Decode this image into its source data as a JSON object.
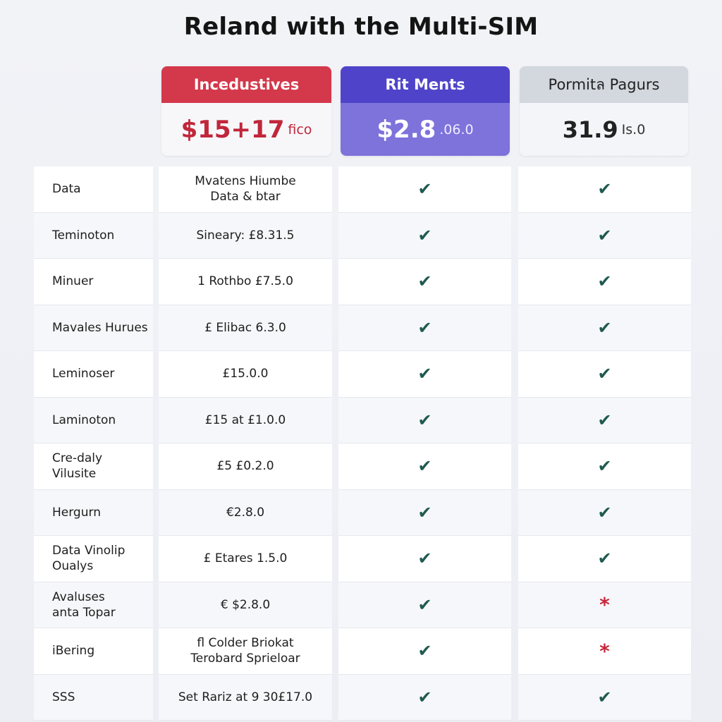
{
  "title": "Reland with the Multi-SIM",
  "plans": [
    {
      "name": "Incedustives",
      "price": "$15+17",
      "price_suffix": "fico",
      "accent": "#d3384b"
    },
    {
      "name": "Rit Ments",
      "price": "$2.8",
      "price_suffix": ".06.0",
      "accent": "#4f44c9"
    },
    {
      "name": "Pormitล Pagurs",
      "price": "31.9",
      "price_suffix": "Is.0",
      "accent": "#d3d7de"
    }
  ],
  "rows": [
    {
      "feature": "Data",
      "price": "Mvatens Hiumbe\nData & btar",
      "plan2": "✔",
      "plan3": "✔"
    },
    {
      "feature": "Teminoton",
      "price": "Sineary: £8.31.5",
      "plan2": "✔",
      "plan3": "✔"
    },
    {
      "feature": "Minuer",
      "price": "1 Rothbo £7.5.0",
      "plan2": "✔",
      "plan3": "✔"
    },
    {
      "feature": "Mavales Hurues",
      "price": "£ Elibac 6.3.0",
      "plan2": "✔",
      "plan3": "✔"
    },
    {
      "feature": "Leminoser",
      "price": "£15.0.0",
      "plan2": "✔",
      "plan3": "✔"
    },
    {
      "feature": "Laminoton",
      "price": "£15 at £1.0.0",
      "plan2": "✔",
      "plan3": "✔"
    },
    {
      "feature": "Cre-daly\nVilusite",
      "price": "£5 £0.2.0",
      "plan2": "✔",
      "plan3": "✔"
    },
    {
      "feature": "Hergurn",
      "price": "€2.8.0",
      "plan2": "✔",
      "plan3": "✔"
    },
    {
      "feature": "Data Vinolip\nOualys",
      "price": "£ Etares 1.5.0",
      "plan2": "✔",
      "plan3": "✔"
    },
    {
      "feature": "Avaluses\nanta Topar",
      "price": "€ $2.8.0",
      "plan2": "✔",
      "plan3": "*"
    },
    {
      "feature": "iBering",
      "price": "fl Colder Briokat\nTerobard Sprieloar",
      "plan2": "✔",
      "plan3": "*"
    },
    {
      "feature": "SSS",
      "price": "Set Rariz at 9 30£17.0",
      "plan2": "✔",
      "plan3": "✔"
    }
  ]
}
